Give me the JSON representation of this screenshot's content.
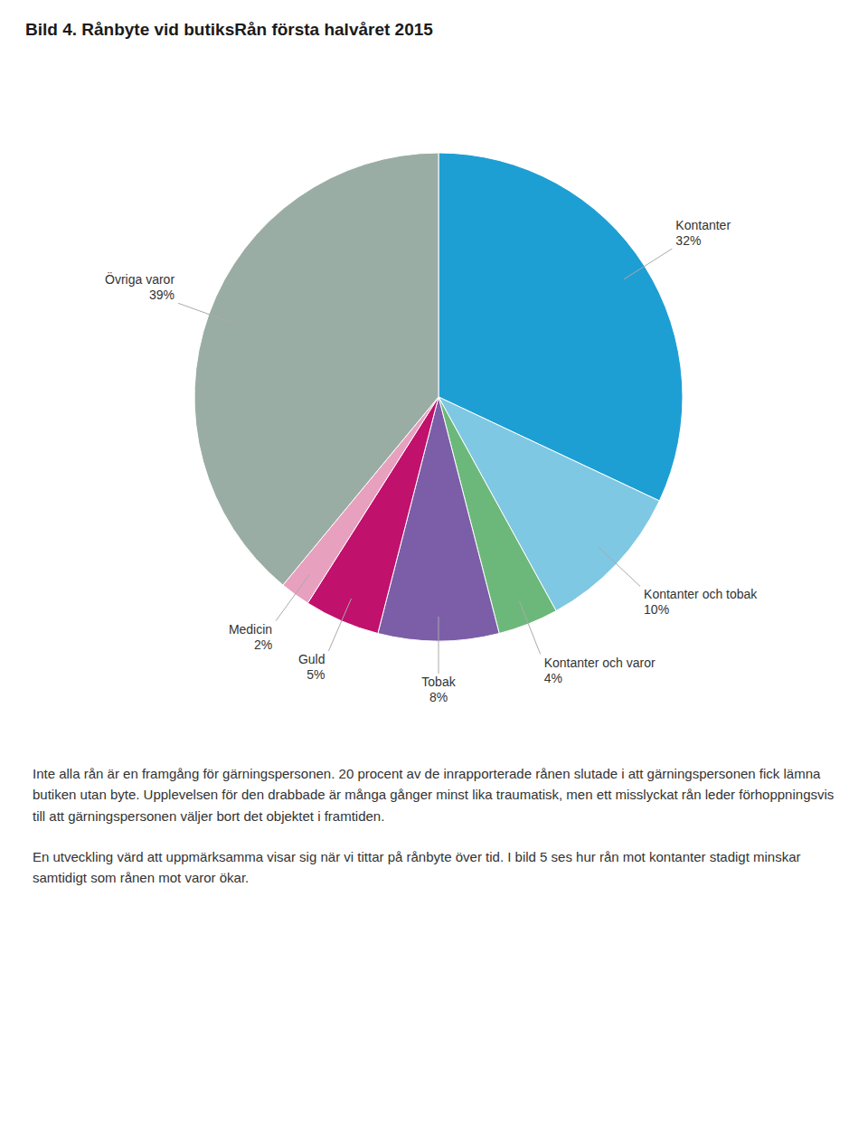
{
  "chart_data": {
    "type": "pie",
    "title": "Bild 4. Rånbyte vid butiksRån första halvåret 2015",
    "categories": [
      "Kontanter",
      "Kontanter och tobak",
      "Kontanter och varor",
      "Tobak",
      "Guld",
      "Medicin",
      "Övriga varor"
    ],
    "values": [
      32,
      10,
      4,
      8,
      5,
      2,
      39
    ],
    "value_labels": [
      "32%",
      "10%",
      "4%",
      "8%",
      "5%",
      "2%",
      "39%"
    ],
    "colors": [
      "#1E9FD4",
      "#7EC8E3",
      "#6CB87A",
      "#7B5EA7",
      "#C0116C",
      "#E8A0BF",
      "#9AADA4"
    ],
    "data_labels": true,
    "annotations": [
      "Inte alla rån är en framgång för gärningspersonen. 20 procent av de inrapporterade rånen slutade i att gärningspersonen fick lämna butiken utan byte. Upplevelsen för den drabbade är många gånger minst lika traumatisk, men ett misslyckat rån leder förhoppningsvis till att gärningspersonen väljer bort det objektet i framtiden.",
      "En utveckling värd att uppmärksamma visar sig när vi tittar på rånbyte över tid. I bild 5 ses hur rån mot kontanter stadigt minskar samtidigt som rånen mot varor ökar."
    ]
  }
}
